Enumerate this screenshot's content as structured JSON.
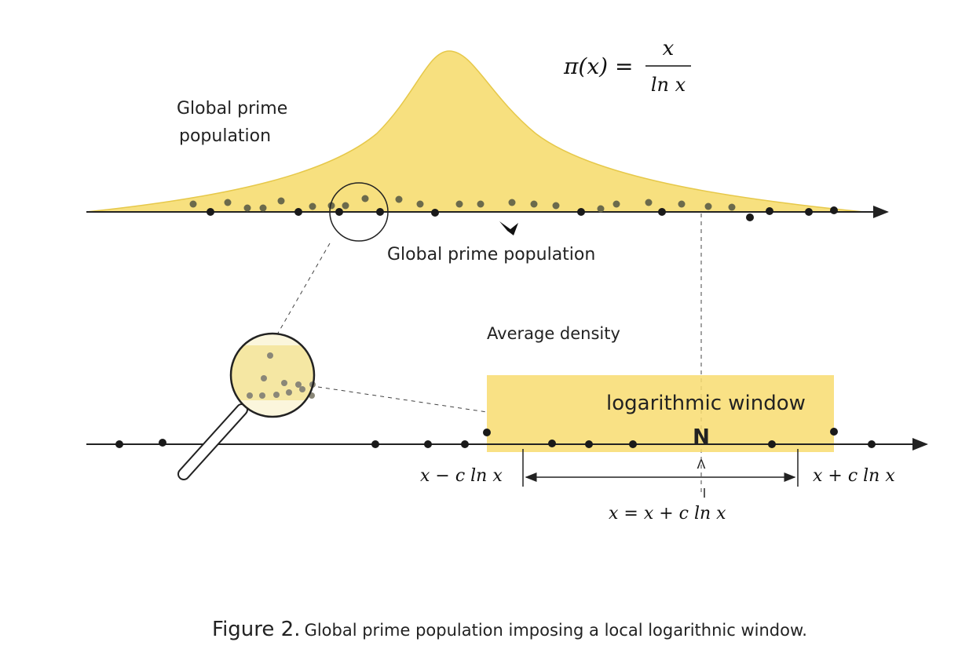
{
  "formula": {
    "lhs": "π(x) =",
    "numerator": "x",
    "denominator": "ln x"
  },
  "labels": {
    "global_left": [
      "Global prime",
      "population"
    ],
    "global_below": "Global prime population",
    "average_density": "Average density",
    "window": "logarithmic window",
    "window_marker": "N",
    "left_bound": "x − c ln x",
    "right_bound": "x + c ln x",
    "center_mark": "Λ",
    "window_equation": "x = x + c ln x"
  },
  "caption": {
    "label": "Figure 2.",
    "text": "Global prime population imposing a local logarithnic window."
  }
}
